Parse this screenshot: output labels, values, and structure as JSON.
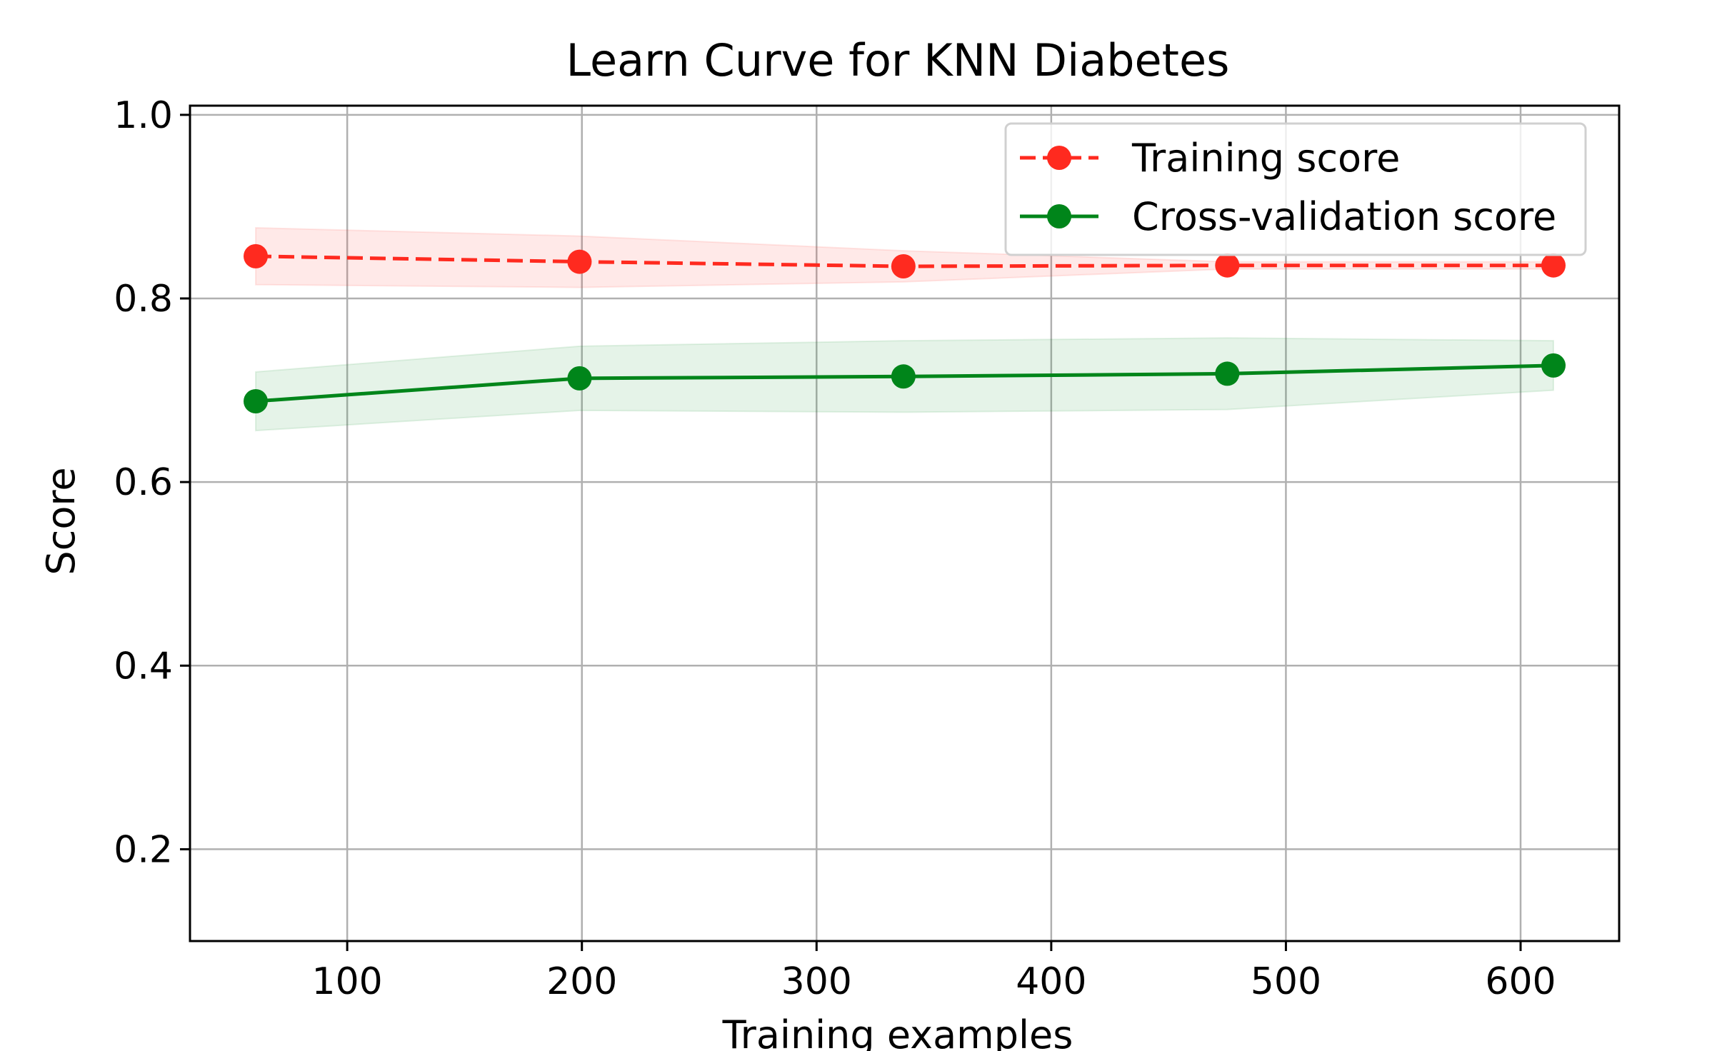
{
  "chart_data": {
    "type": "line",
    "title": "Learn Curve for KNN Diabetes",
    "xlabel": "Training examples",
    "ylabel": "Score",
    "xlim": [
      33,
      642
    ],
    "ylim": [
      0.1,
      1.01
    ],
    "xticks": [
      100,
      200,
      300,
      400,
      500,
      600
    ],
    "xtick_labels": [
      "100",
      "200",
      "300",
      "400",
      "500",
      "600"
    ],
    "yticks": [
      0.2,
      0.4,
      0.6,
      0.8,
      1.0
    ],
    "ytick_labels": [
      "0.2",
      "0.4",
      "0.6",
      "0.8",
      "1.0"
    ],
    "grid": true,
    "legend_position": "top-right",
    "x": [
      61,
      199,
      337,
      475,
      614
    ],
    "series": [
      {
        "name": "Training score",
        "color": "#ff2a1f",
        "line_style": "dashed",
        "values": [
          0.846,
          0.84,
          0.835,
          0.836,
          0.836
        ],
        "band_upper": [
          0.877,
          0.868,
          0.852,
          0.84,
          0.84
        ],
        "band_lower": [
          0.815,
          0.812,
          0.818,
          0.832,
          0.832
        ]
      },
      {
        "name": "Cross-validation score",
        "color": "#00851a",
        "line_style": "solid",
        "values": [
          0.688,
          0.713,
          0.715,
          0.718,
          0.727
        ],
        "band_upper": [
          0.72,
          0.748,
          0.754,
          0.757,
          0.754
        ],
        "band_lower": [
          0.656,
          0.678,
          0.676,
          0.679,
          0.7
        ]
      }
    ]
  }
}
